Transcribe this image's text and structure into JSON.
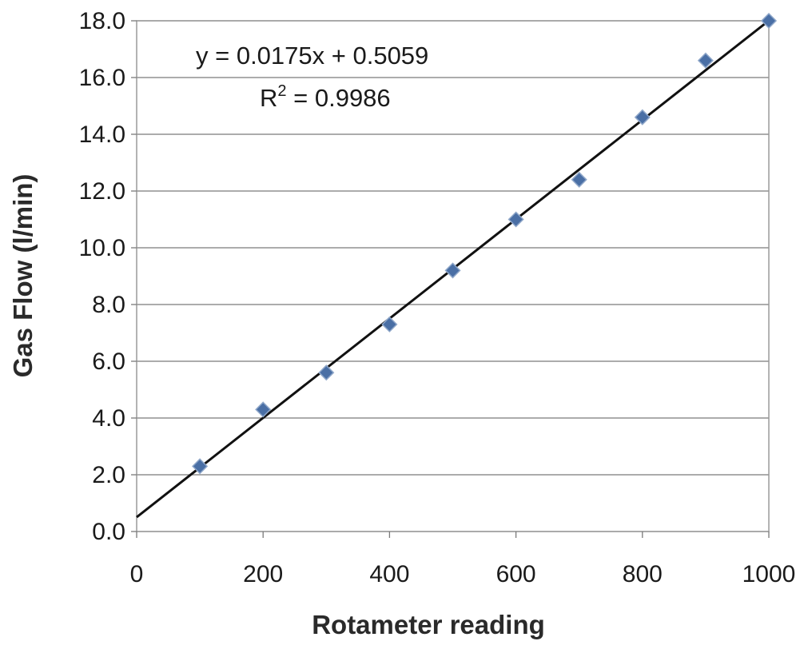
{
  "chart_data": {
    "type": "scatter",
    "title": "",
    "xlabel": "Rotameter reading",
    "ylabel": "Gas Flow (l/min)",
    "xlim": [
      0,
      1000
    ],
    "ylim": [
      0,
      18
    ],
    "x_ticks": [
      "0",
      "200",
      "400",
      "600",
      "800",
      "1000"
    ],
    "y_ticks": [
      "0.0",
      "2.0",
      "4.0",
      "6.0",
      "8.0",
      "10.0",
      "12.0",
      "14.0",
      "16.0",
      "18.0"
    ],
    "grid": "horizontal",
    "legend": "none",
    "series": [
      {
        "x": [
          100,
          200,
          300,
          400,
          500,
          600,
          700,
          800,
          900,
          1000
        ],
        "y": [
          2.3,
          4.3,
          5.6,
          7.3,
          9.2,
          11.0,
          12.4,
          14.6,
          16.6,
          18.0
        ],
        "marker": "diamond",
        "color": "#4a6fa5"
      }
    ],
    "trendline": {
      "slope": 0.0175,
      "intercept": 0.5059,
      "color": "#111111",
      "equation_text": "y = 0.0175x + 0.5059",
      "r2_prefix": "R",
      "r2_sup": "2",
      "r2_value": " = 0.9986"
    }
  }
}
